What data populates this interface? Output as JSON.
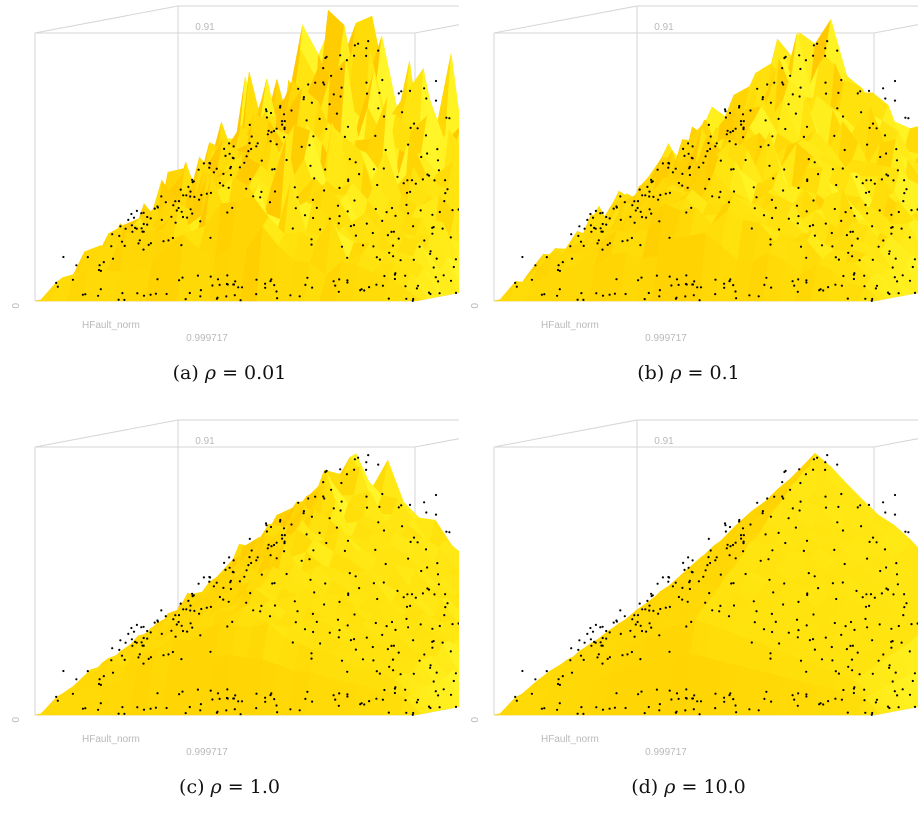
{
  "figure": {
    "panels": [
      {
        "label": "(a)",
        "symbol": "ρ",
        "op": "=",
        "value": "0.01",
        "roughness": 1.0
      },
      {
        "label": "(b)",
        "symbol": "ρ",
        "op": "=",
        "value": "0.1",
        "roughness": 0.6
      },
      {
        "label": "(c)",
        "symbol": "ρ",
        "op": "=",
        "value": "1.0",
        "roughness": 0.25
      },
      {
        "label": "(d)",
        "symbol": "ρ",
        "op": "=",
        "value": "10.0",
        "roughness": 0.05
      }
    ]
  },
  "chart_data": [
    {
      "type": "surface",
      "subtitle": "(a) ρ = 0.01",
      "xlabel": "HFault_norm",
      "tick_z_top": "0.91",
      "tick_z_bottom": "0",
      "tick_x": "0.999717",
      "surface_color": "#FFE600",
      "point_color": "#000000"
    },
    {
      "type": "surface",
      "subtitle": "(b) ρ = 0.1",
      "xlabel": "HFault_norm",
      "tick_z_top": "0.91",
      "tick_z_bottom": "0",
      "tick_x": "0.999717",
      "surface_color": "#FFE600",
      "point_color": "#000000"
    },
    {
      "type": "surface",
      "subtitle": "(c) ρ = 1.0",
      "xlabel": "HFault_norm",
      "tick_z_top": "0.91",
      "tick_z_bottom": "0",
      "tick_x": "0.999717",
      "surface_color": "#FFE600",
      "point_color": "#000000"
    },
    {
      "type": "surface",
      "subtitle": "(d) ρ = 10.0",
      "xlabel": "HFault_norm",
      "tick_z_top": "0.91",
      "tick_z_bottom": "0",
      "tick_x": "0.999717",
      "surface_color": "#FFE600",
      "point_color": "#000000"
    }
  ]
}
